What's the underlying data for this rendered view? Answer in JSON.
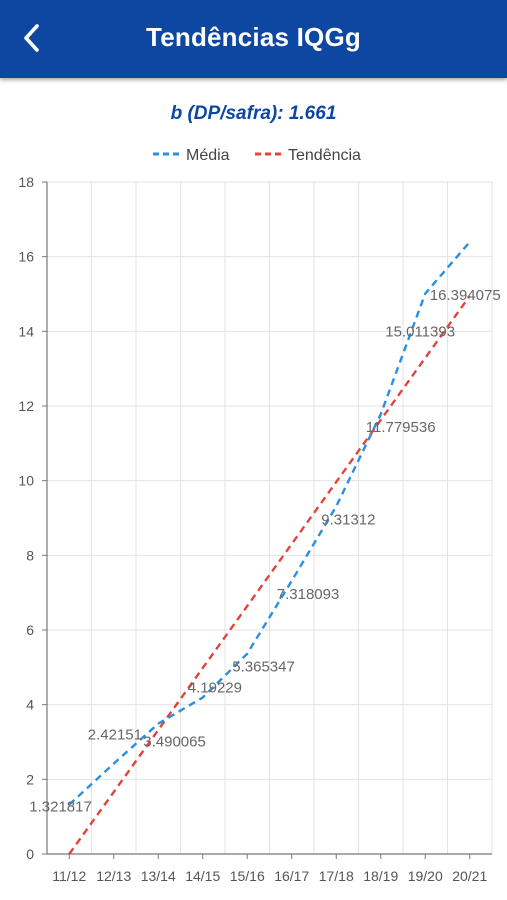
{
  "header": {
    "title": "Tendências IQGg",
    "back_icon": "back-arrow-icon"
  },
  "subtitle": "b (DP/safra): 1.661",
  "colors": {
    "appbar": "#0d47a1",
    "media": "#2a8fe0",
    "tendencia": "#e0443c"
  },
  "chart_data": {
    "type": "line",
    "categories": [
      "11/12",
      "12/13",
      "13/14",
      "14/15",
      "15/16",
      "16/17",
      "17/18",
      "18/19",
      "19/20",
      "20/21"
    ],
    "series": [
      {
        "name": "Média",
        "style": "dashed",
        "values": [
          1.321817,
          2.42151,
          3.490065,
          4.19229,
          5.365347,
          7.318093,
          9.31312,
          11.779536,
          15.011393,
          16.394075
        ]
      },
      {
        "name": "Tendência",
        "style": "dashed",
        "values": [
          0.0,
          1.661,
          3.322,
          4.983,
          6.644,
          8.305,
          9.966,
          11.627,
          13.288,
          14.949
        ]
      }
    ],
    "data_labels": [
      "1.321817",
      "2.42151",
      "3.490065",
      "4.19229",
      "5.365347",
      "7.318093",
      "9.31312",
      "11.779536",
      "15.011393",
      "16.394075"
    ],
    "ylim": [
      0,
      18
    ],
    "yticks": [
      0,
      2,
      4,
      6,
      8,
      10,
      12,
      14,
      16,
      18
    ],
    "grid": true,
    "legend": "top-center"
  }
}
